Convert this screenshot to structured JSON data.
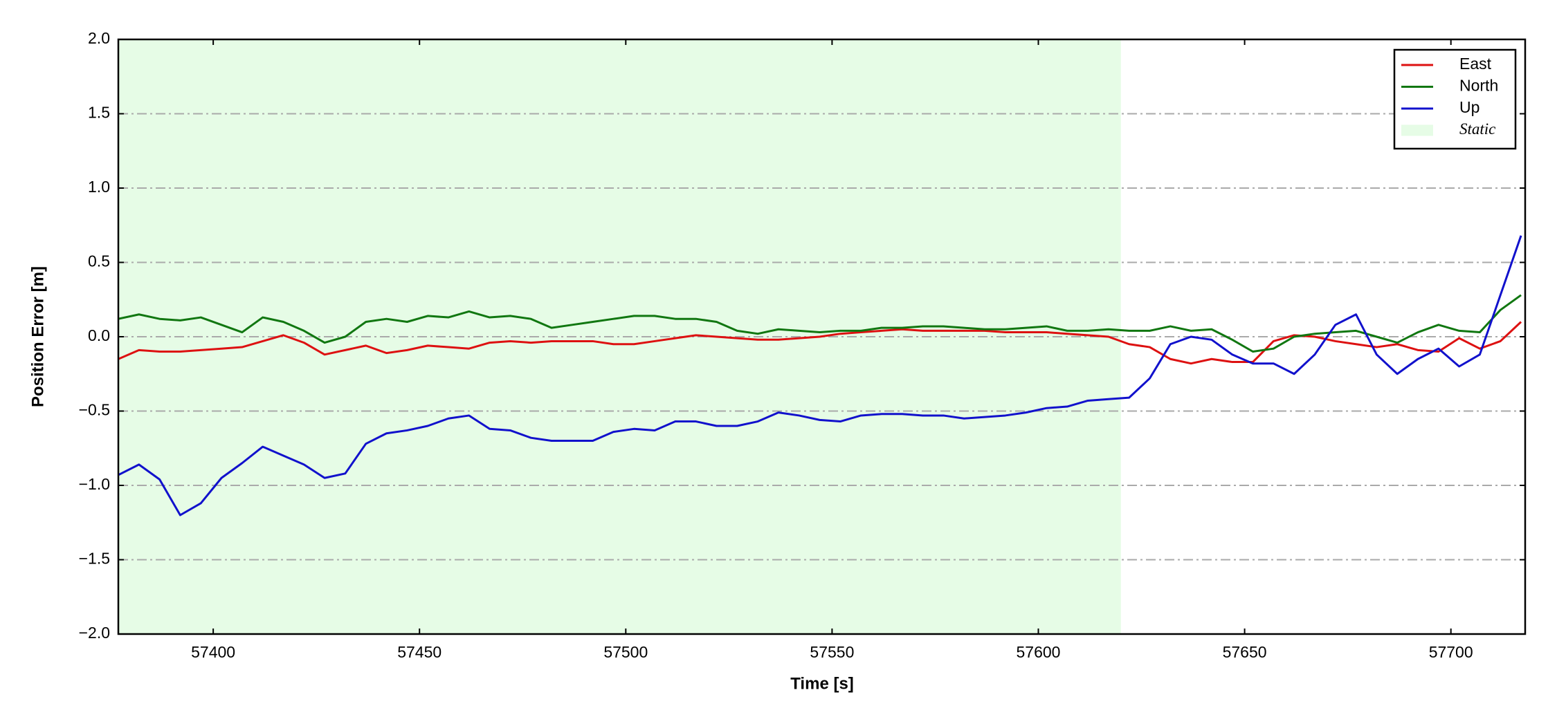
{
  "chart_data": {
    "type": "line",
    "xlabel": "Time [s]",
    "ylabel": "Position Error [m]",
    "xlim": [
      57377,
      57718
    ],
    "xticks": [
      57400,
      57450,
      57500,
      57550,
      57600,
      57650,
      57700
    ],
    "ylim": [
      -2,
      2
    ],
    "yticks": [
      {
        "value": -2,
        "label": "−2.0"
      },
      {
        "value": -1.5,
        "label": "−1.5"
      },
      {
        "value": -1,
        "label": "−1.0"
      },
      {
        "value": -0.5,
        "label": "−0.5"
      },
      {
        "value": 0,
        "label": "0.0"
      },
      {
        "value": 0.5,
        "label": "0.5"
      },
      {
        "value": 1,
        "label": "1.0"
      },
      {
        "value": 1.5,
        "label": "1.5"
      },
      {
        "value": 2,
        "label": "2.0"
      }
    ],
    "grid": true,
    "legend": "upper right",
    "shaded_region": {
      "name": "Static",
      "color": "#e6fce6",
      "x": [
        57377,
        57620
      ]
    },
    "x": [
      57377,
      57382,
      57387,
      57392,
      57397,
      57402,
      57407,
      57412,
      57417,
      57422,
      57427,
      57432,
      57437,
      57442,
      57447,
      57452,
      57457,
      57462,
      57467,
      57472,
      57477,
      57482,
      57487,
      57492,
      57497,
      57502,
      57507,
      57512,
      57517,
      57522,
      57527,
      57532,
      57537,
      57542,
      57547,
      57552,
      57557,
      57562,
      57567,
      57572,
      57577,
      57582,
      57587,
      57592,
      57597,
      57602,
      57607,
      57612,
      57617,
      57622,
      57627,
      57632,
      57637,
      57642,
      57647,
      57652,
      57657,
      57662,
      57667,
      57672,
      57677,
      57682,
      57687,
      57692,
      57697,
      57702,
      57707,
      57712,
      57717
    ],
    "series": [
      {
        "name": "East",
        "color": "#dd1111",
        "values": [
          -0.15,
          -0.09,
          -0.1,
          -0.1,
          -0.09,
          -0.08,
          -0.07,
          -0.03,
          0.01,
          -0.04,
          -0.12,
          -0.09,
          -0.06,
          -0.11,
          -0.09,
          -0.06,
          -0.07,
          -0.08,
          -0.04,
          -0.03,
          -0.04,
          -0.03,
          -0.03,
          -0.03,
          -0.05,
          -0.05,
          -0.03,
          -0.01,
          0.01,
          0.0,
          -0.01,
          -0.02,
          -0.02,
          -0.01,
          0.0,
          0.02,
          0.03,
          0.04,
          0.05,
          0.04,
          0.04,
          0.04,
          0.04,
          0.03,
          0.03,
          0.03,
          0.02,
          0.01,
          0.0,
          -0.05,
          -0.07,
          -0.15,
          -0.18,
          -0.15,
          -0.17,
          -0.17,
          -0.03,
          0.01,
          0.0,
          -0.03,
          -0.05,
          -0.07,
          -0.05,
          -0.09,
          -0.1,
          -0.01,
          -0.08,
          -0.03,
          0.1
        ]
      },
      {
        "name": "North",
        "color": "#117711",
        "values": [
          0.12,
          0.15,
          0.12,
          0.11,
          0.13,
          0.08,
          0.03,
          0.13,
          0.1,
          0.04,
          -0.04,
          0.0,
          0.1,
          0.12,
          0.1,
          0.14,
          0.13,
          0.17,
          0.13,
          0.14,
          0.12,
          0.06,
          0.08,
          0.1,
          0.12,
          0.14,
          0.14,
          0.12,
          0.12,
          0.1,
          0.04,
          0.02,
          0.05,
          0.04,
          0.03,
          0.04,
          0.04,
          0.06,
          0.06,
          0.07,
          0.07,
          0.06,
          0.05,
          0.05,
          0.06,
          0.07,
          0.04,
          0.04,
          0.05,
          0.04,
          0.04,
          0.07,
          0.04,
          0.05,
          -0.02,
          -0.1,
          -0.08,
          0.0,
          0.02,
          0.03,
          0.04,
          0.0,
          -0.04,
          0.03,
          0.08,
          0.04,
          0.03,
          0.18,
          0.28
        ]
      },
      {
        "name": "Up",
        "color": "#1111cc",
        "values": [
          -0.93,
          -0.86,
          -0.96,
          -1.2,
          -1.12,
          -0.95,
          -0.85,
          -0.74,
          -0.8,
          -0.86,
          -0.95,
          -0.92,
          -0.72,
          -0.65,
          -0.63,
          -0.6,
          -0.55,
          -0.53,
          -0.62,
          -0.63,
          -0.68,
          -0.7,
          -0.7,
          -0.7,
          -0.64,
          -0.62,
          -0.63,
          -0.57,
          -0.57,
          -0.6,
          -0.6,
          -0.57,
          -0.51,
          -0.53,
          -0.56,
          -0.57,
          -0.53,
          -0.52,
          -0.52,
          -0.53,
          -0.53,
          -0.55,
          -0.54,
          -0.53,
          -0.51,
          -0.48,
          -0.47,
          -0.43,
          -0.42,
          -0.41,
          -0.28,
          -0.05,
          0.0,
          -0.02,
          -0.12,
          -0.18,
          -0.18,
          -0.25,
          -0.12,
          0.08,
          0.15,
          -0.12,
          -0.25,
          -0.15,
          -0.08,
          -0.2,
          -0.12,
          0.28,
          0.68
        ]
      }
    ]
  }
}
